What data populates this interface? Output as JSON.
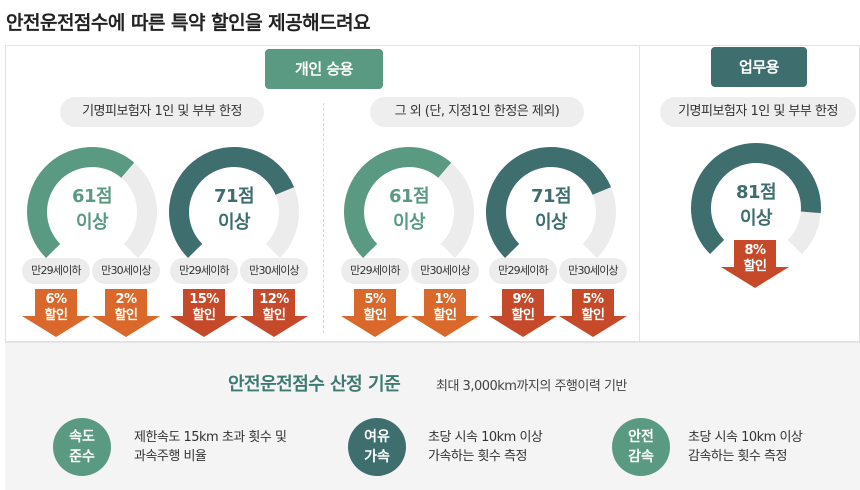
{
  "page_title": "안전운전점수에 따른 특약 할인을 제공해드려요",
  "colors": {
    "green": "#5a9a82",
    "teal": "#3f6e6f",
    "arrow_orange": "#d9682a",
    "arrow_red": "#c64a2a",
    "track": "#ececec"
  },
  "personal": {
    "label": "개인 승용",
    "groups": [
      {
        "condition": "기명피보험자 1인 및 부부 한정",
        "gauges": [
          {
            "score": "61점",
            "suffix": "이상",
            "level": 0.65,
            "color": "green",
            "ages": [
              {
                "label": "만29세이하",
                "discount": "6%",
                "word": "할인",
                "color": "arrow_orange"
              },
              {
                "label": "만30세이상",
                "discount": "2%",
                "word": "할인",
                "color": "arrow_orange"
              }
            ]
          },
          {
            "score": "71점",
            "suffix": "이상",
            "level": 0.75,
            "color": "teal",
            "ages": [
              {
                "label": "만29세이하",
                "discount": "15%",
                "word": "할인",
                "color": "arrow_red"
              },
              {
                "label": "만30세이상",
                "discount": "12%",
                "word": "할인",
                "color": "arrow_red"
              }
            ]
          }
        ]
      },
      {
        "condition": "그 외 (단, 지정1인 한정은 제외)",
        "gauges": [
          {
            "score": "61점",
            "suffix": "이상",
            "level": 0.65,
            "color": "green",
            "ages": [
              {
                "label": "만29세이하",
                "discount": "5%",
                "word": "할인",
                "color": "arrow_orange"
              },
              {
                "label": "만30세이상",
                "discount": "1%",
                "word": "할인",
                "color": "arrow_orange"
              }
            ]
          },
          {
            "score": "71점",
            "suffix": "이상",
            "level": 0.75,
            "color": "teal",
            "ages": [
              {
                "label": "만29세이하",
                "discount": "9%",
                "word": "할인",
                "color": "arrow_red"
              },
              {
                "label": "만30세이상",
                "discount": "5%",
                "word": "할인",
                "color": "arrow_red"
              }
            ]
          }
        ]
      }
    ]
  },
  "business": {
    "label": "업무용",
    "condition": "기명피보험자 1인 및 부부 한정",
    "gauge": {
      "score": "81점",
      "suffix": "이상",
      "level": 0.85,
      "color": "teal"
    },
    "discount": "8%",
    "word": "할인",
    "color": "arrow_red"
  },
  "criteria": {
    "title": "안전운전점수 산정 기준",
    "subtitle": "최대 3,000km까지의 주행이력 기반",
    "items": [
      {
        "line1": "속도",
        "line2": "준수",
        "desc1": "제한속도 15km 초과 횟수 및",
        "desc2": "과속주행 비율",
        "color": "green"
      },
      {
        "line1": "여유",
        "line2": "가속",
        "desc1": "초당 시속 10km 이상",
        "desc2": "가속하는 횟수 측정",
        "color": "teal"
      },
      {
        "line1": "안전",
        "line2": "감속",
        "desc1": "초당 시속 10km 이상",
        "desc2": "감속하는 횟수 측정",
        "color": "green"
      }
    ]
  }
}
